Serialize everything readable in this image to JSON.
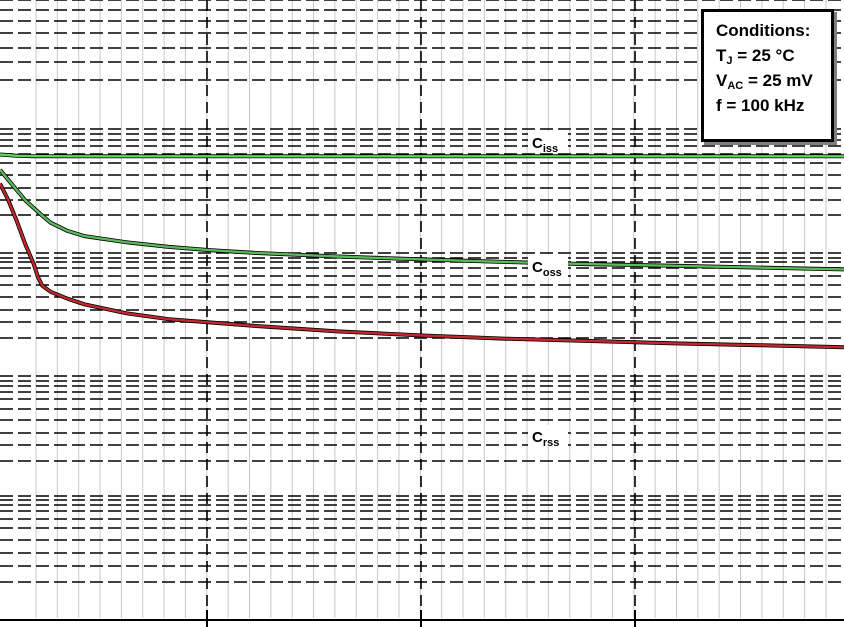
{
  "chart_data": {
    "type": "line",
    "title": "",
    "xlabel": "",
    "ylabel": "",
    "y_scale": "log",
    "x_scale": "linear",
    "grid": true,
    "series": [
      {
        "name": "Ciss",
        "label_main": "C",
        "label_sub": "iss",
        "color": "#5ed65e",
        "x": [
          0,
          0.02,
          0.04,
          0.1,
          0.2,
          0.4,
          0.6,
          0.8,
          1.0
        ],
        "y": [
          760,
          742,
          736,
          735,
          735,
          735,
          735,
          735,
          735
        ]
      },
      {
        "name": "Coss",
        "label_main": "C",
        "label_sub": "oss",
        "color": "#5cb85c",
        "x": [
          0,
          0.01,
          0.03,
          0.05,
          0.06,
          0.08,
          0.1,
          0.15,
          0.2,
          0.25,
          0.3,
          0.4,
          0.5,
          0.6,
          0.7,
          0.8,
          0.9,
          1.0
        ],
        "y": [
          570,
          470,
          320,
          240,
          210,
          180,
          163,
          145,
          133,
          125,
          119,
          111,
          105,
          100,
          96,
          93,
          90,
          87
        ]
      },
      {
        "name": "Crss",
        "label_main": "C",
        "label_sub": "rss",
        "color": "#c0282e",
        "x": [
          0,
          0.01,
          0.02,
          0.03,
          0.04,
          0.045,
          0.05,
          0.06,
          0.08,
          0.1,
          0.15,
          0.2,
          0.3,
          0.4,
          0.5,
          0.6,
          0.7,
          0.8,
          0.9,
          1.0
        ],
        "y": [
          440,
          320,
          215,
          140,
          96,
          75,
          64,
          57,
          50,
          45,
          38,
          34,
          30,
          27,
          25,
          23.5,
          22.5,
          21.5,
          20.8,
          20
        ]
      }
    ]
  },
  "conditions": {
    "title": "Conditions:",
    "line1_main": "T",
    "line1_sub": "J",
    "line1_rest": " = 25 °C",
    "line2_main": "V",
    "line2_sub": "AC",
    "line2_rest": " = 25 mV",
    "line3": "f = 100 kHz"
  }
}
